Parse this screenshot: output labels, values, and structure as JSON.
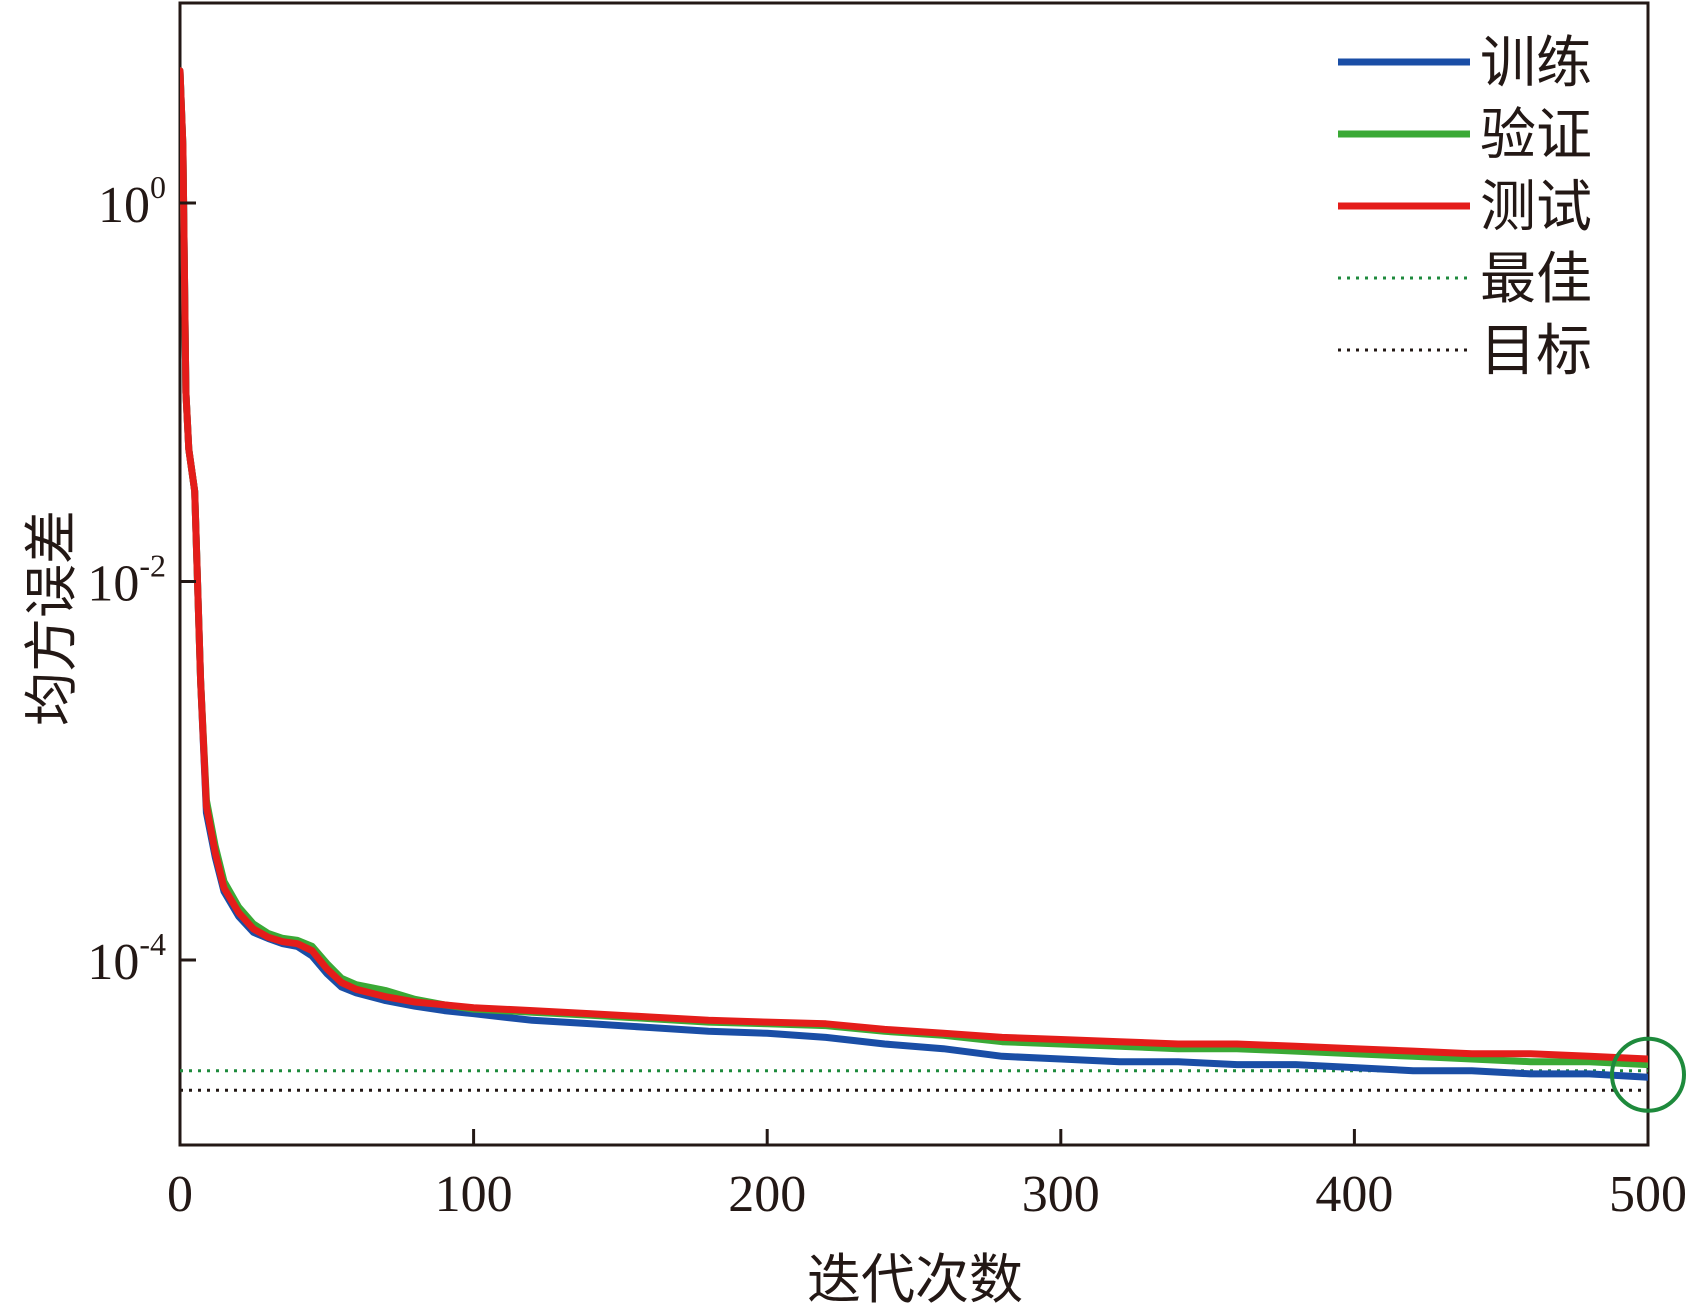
{
  "chart_data": {
    "type": "line",
    "title": "",
    "xlabel": "迭代次数",
    "ylabel": "均方误差",
    "xlim": [
      0,
      500
    ],
    "ylim_log10": [
      -5,
      1
    ],
    "y_scale": "log",
    "x_ticks": [
      0,
      100,
      200,
      300,
      400,
      500
    ],
    "x_tick_labels": [
      "0",
      "100",
      "200",
      "300",
      "400",
      "500"
    ],
    "y_ticks": [
      {
        "base": "10",
        "exp": "0",
        "value": 1
      },
      {
        "base": "10",
        "exp": "-2",
        "value": 0.01
      },
      {
        "base": "10",
        "exp": "-4",
        "value": 0.0001
      }
    ],
    "grid": false,
    "legend_position": "top-right",
    "series": [
      {
        "name": "训练",
        "color": "#1a4ea6",
        "style": "solid",
        "x": [
          0,
          1,
          2,
          3,
          5,
          7,
          9,
          12,
          15,
          20,
          25,
          30,
          35,
          40,
          45,
          50,
          55,
          60,
          70,
          80,
          90,
          100,
          120,
          140,
          160,
          180,
          200,
          220,
          240,
          260,
          280,
          300,
          320,
          340,
          360,
          380,
          400,
          420,
          440,
          460,
          480,
          500
        ],
        "y": [
          5.0,
          2.0,
          0.1,
          0.05,
          0.03,
          0.003,
          0.0006,
          0.00035,
          0.00023,
          0.00017,
          0.00014,
          0.00013,
          0.000122,
          0.000118,
          0.000105,
          8.5e-05,
          7.2e-05,
          6.7e-05,
          6.1e-05,
          5.7e-05,
          5.4e-05,
          5.2e-05,
          4.8e-05,
          4.6e-05,
          4.4e-05,
          4.2e-05,
          4.1e-05,
          3.9e-05,
          3.6e-05,
          3.4e-05,
          3.1e-05,
          3e-05,
          2.9e-05,
          2.9e-05,
          2.8e-05,
          2.8e-05,
          2.7e-05,
          2.6e-05,
          2.6e-05,
          2.5e-05,
          2.5e-05,
          2.4e-05
        ]
      },
      {
        "name": "验证",
        "color": "#3aa935",
        "style": "solid",
        "x": [
          0,
          1,
          2,
          3,
          5,
          7,
          9,
          12,
          15,
          20,
          25,
          30,
          35,
          40,
          45,
          50,
          55,
          60,
          70,
          80,
          90,
          100,
          120,
          140,
          160,
          180,
          200,
          220,
          240,
          260,
          280,
          300,
          320,
          340,
          360,
          380,
          400,
          420,
          440,
          460,
          480,
          500
        ],
        "y": [
          5.0,
          2.0,
          0.1,
          0.05,
          0.03,
          0.003,
          0.0007,
          0.0004,
          0.00026,
          0.00019,
          0.000155,
          0.000138,
          0.00013,
          0.000127,
          0.000118,
          9.6e-05,
          8e-05,
          7.4e-05,
          6.9e-05,
          6.2e-05,
          5.8e-05,
          5.5e-05,
          5.3e-05,
          5.1e-05,
          4.9e-05,
          4.7e-05,
          4.6e-05,
          4.5e-05,
          4.2e-05,
          4e-05,
          3.7e-05,
          3.6e-05,
          3.5e-05,
          3.4e-05,
          3.4e-05,
          3.3e-05,
          3.2e-05,
          3.1e-05,
          3e-05,
          2.9e-05,
          2.9e-05,
          2.8e-05
        ]
      },
      {
        "name": "测试",
        "color": "#e41d1a",
        "style": "solid",
        "x": [
          0,
          1,
          2,
          3,
          5,
          7,
          9,
          12,
          15,
          20,
          25,
          30,
          35,
          40,
          45,
          50,
          55,
          60,
          70,
          80,
          90,
          100,
          120,
          140,
          160,
          180,
          200,
          220,
          240,
          260,
          280,
          300,
          320,
          340,
          360,
          380,
          400,
          420,
          440,
          460,
          480,
          500
        ],
        "y": [
          5.0,
          2.0,
          0.1,
          0.05,
          0.03,
          0.003,
          0.00065,
          0.00037,
          0.00024,
          0.000178,
          0.000146,
          0.000132,
          0.000125,
          0.000122,
          0.000112,
          9e-05,
          7.6e-05,
          7e-05,
          6.4e-05,
          6e-05,
          5.8e-05,
          5.6e-05,
          5.4e-05,
          5.2e-05,
          5e-05,
          4.8e-05,
          4.7e-05,
          4.6e-05,
          4.3e-05,
          4.1e-05,
          3.9e-05,
          3.8e-05,
          3.7e-05,
          3.6e-05,
          3.6e-05,
          3.5e-05,
          3.4e-05,
          3.3e-05,
          3.2e-05,
          3.2e-05,
          3.1e-05,
          3e-05
        ]
      },
      {
        "name": "最佳",
        "color": "#1e8a3c",
        "style": "dotted",
        "x": [
          0,
          500
        ],
        "y": [
          2.6e-05,
          2.6e-05
        ]
      },
      {
        "name": "目标",
        "color": "#231815",
        "style": "dotted",
        "x": [
          0,
          500
        ],
        "y": [
          2.05e-05,
          2.05e-05
        ]
      }
    ],
    "marker_circle": {
      "x": 500,
      "y": 2.6e-05,
      "color": "#1e8a3c"
    }
  }
}
